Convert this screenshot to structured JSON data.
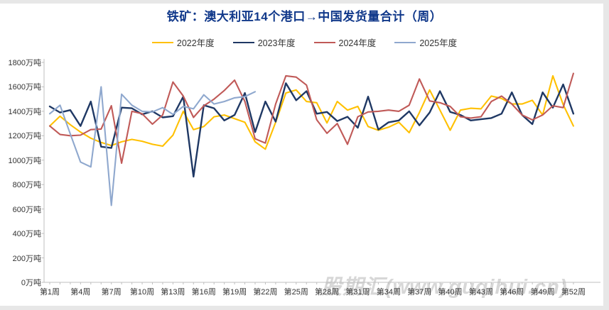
{
  "title": {
    "text": "铁矿：澳大利亚14个港口→中国发货量合计（周）",
    "color": "#10388a"
  },
  "watermark": {
    "text": "股期汇(www.guqihui.cn)"
  },
  "colors": {
    "background": "#e7e7e7",
    "canvas": "#ffffff",
    "axis": "#bfbfbf",
    "tick_text": "#333333"
  },
  "chart_data": {
    "type": "line",
    "title": "铁矿：澳大利亚14个港口→中国发货量合计（周）",
    "x_unit": "周",
    "y_unit": "万吨",
    "ylim": [
      0,
      1800
    ],
    "ytick_step": 200,
    "grid": false,
    "legend_position": "top-center",
    "y_tick_labels": [
      "0万吨",
      "200万吨",
      "400万吨",
      "600万吨",
      "800万吨",
      "1000万吨",
      "1200万吨",
      "1400万吨",
      "1600万吨",
      "1800万吨"
    ],
    "x_tick_weeks": [
      1,
      4,
      7,
      10,
      13,
      16,
      19,
      22,
      25,
      28,
      31,
      34,
      37,
      40,
      43,
      46,
      49,
      52
    ],
    "x_tick_labels": [
      "第1周",
      "第4周",
      "第7周",
      "第10周",
      "第13周",
      "第16周",
      "第19周",
      "第22周",
      "第25周",
      "第28周",
      "第31周",
      "第34周",
      "第37周",
      "第40周",
      "第43周",
      "第46周",
      "第49周",
      "第52周"
    ],
    "weeks_total": 52,
    "series": [
      {
        "name": "2022年度",
        "color": "#ffc000",
        "values": [
          1280,
          1360,
          1290,
          1230,
          1180,
          1145,
          1120,
          1150,
          1170,
          1155,
          1130,
          1115,
          1205,
          1400,
          1250,
          1275,
          1355,
          1370,
          1340,
          1310,
          1150,
          1090,
          1310,
          1550,
          1575,
          1480,
          1470,
          1305,
          1480,
          1410,
          1440,
          1275,
          1245,
          1270,
          1310,
          1225,
          1390,
          1575,
          1410,
          1245,
          1410,
          1425,
          1420,
          1525,
          1505,
          1460,
          1460,
          1490,
          1370,
          1690,
          1455,
          1280
        ]
      },
      {
        "name": "2023年度",
        "color": "#1f3864",
        "values": [
          1440,
          1390,
          1410,
          1280,
          1480,
          1110,
          1100,
          1430,
          1425,
          1375,
          1400,
          1350,
          1360,
          1520,
          865,
          1450,
          1425,
          1325,
          1370,
          1550,
          1230,
          1480,
          1315,
          1630,
          1490,
          1565,
          1380,
          1395,
          1320,
          1355,
          1265,
          1520,
          1250,
          1310,
          1325,
          1400,
          1285,
          1390,
          1565,
          1395,
          1370,
          1325,
          1335,
          1345,
          1380,
          1555,
          1370,
          1295,
          1555,
          1430,
          1620,
          1380
        ]
      },
      {
        "name": "2024年度",
        "color": "#c05a58",
        "values": [
          1280,
          1210,
          1200,
          1205,
          1250,
          1255,
          1445,
          975,
          1400,
          1380,
          1295,
          1370,
          1640,
          1525,
          1350,
          1445,
          1500,
          1570,
          1655,
          1480,
          1175,
          1140,
          1460,
          1690,
          1680,
          1615,
          1330,
          1220,
          1300,
          1130,
          1355,
          1395,
          1400,
          1410,
          1400,
          1450,
          1665,
          1485,
          1470,
          1440,
          1355,
          1345,
          1355,
          1480,
          1525,
          1460,
          1370,
          1330,
          1370,
          1445,
          1430,
          1710
        ]
      },
      {
        "name": "2025年度",
        "color": "#8fa8ce",
        "values": [
          1380,
          1450,
          1215,
          985,
          945,
          1600,
          630,
          1540,
          1450,
          1400,
          1395,
          1430,
          1375,
          1440,
          1420,
          1535,
          1460,
          1480,
          1510,
          1520,
          1560
        ]
      }
    ]
  }
}
